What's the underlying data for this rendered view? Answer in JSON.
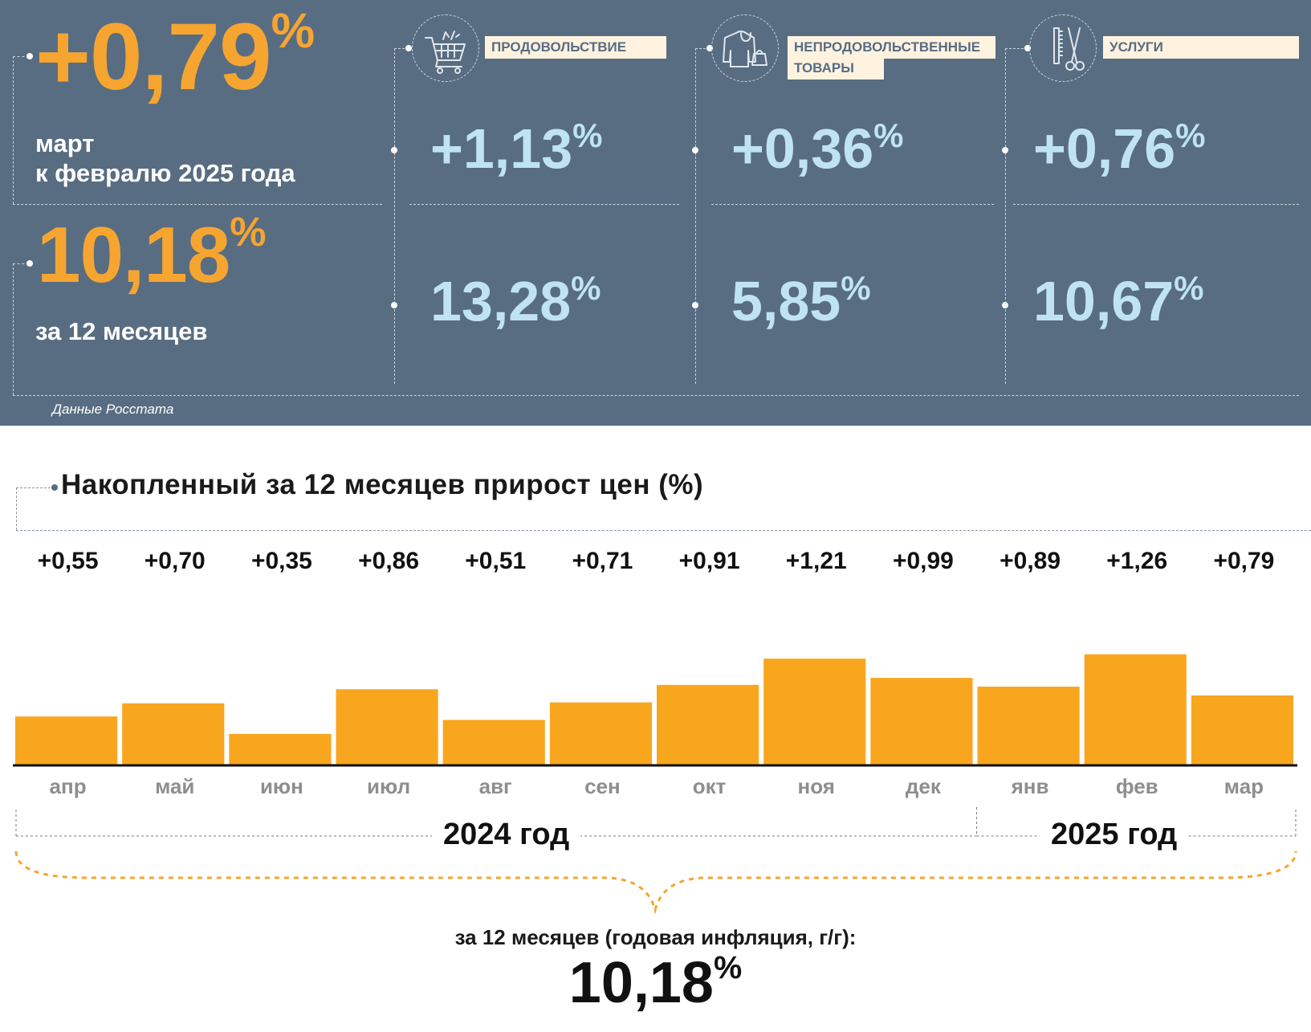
{
  "monthly": {
    "value": "+0,79",
    "unit": "%",
    "caption_line1": "март",
    "caption_line2": "к февралю 2025 года"
  },
  "annual": {
    "value": "10,18",
    "unit": "%",
    "caption": "за 12 месяцев"
  },
  "categories": [
    {
      "label": "ПРОДОВОЛЬСТВИЕ",
      "label_line2": "",
      "icon": "shopping-cart-icon",
      "monthly": "+1,13",
      "annual": "13,28"
    },
    {
      "label": "НЕПРОДОВОЛЬСТВЕННЫЕ",
      "label_line2": "ТОВАРЫ",
      "icon": "clothing-icon",
      "monthly": "+0,36",
      "annual": "5,85"
    },
    {
      "label": "УСЛУГИ",
      "label_line2": "",
      "icon": "scissors-comb-icon",
      "monthly": "+0,76",
      "annual": "10,67"
    }
  ],
  "source": "Данные Росстата",
  "colors": {
    "panel": "#586d82",
    "accent_orange": "#f6a531",
    "light_blue": "#bfe3f2",
    "bar": "#f9a61f"
  },
  "chart_data": {
    "type": "bar",
    "title": "Накопленный за 12 месяцев прирост цен (%)",
    "categories": [
      "апр",
      "май",
      "июн",
      "июл",
      "авг",
      "сен",
      "окт",
      "ноя",
      "дек",
      "янв",
      "фев",
      "мар"
    ],
    "values": [
      0.55,
      0.7,
      0.35,
      0.86,
      0.51,
      0.71,
      0.91,
      1.21,
      0.99,
      0.89,
      1.26,
      0.79
    ],
    "value_labels": [
      "+0,55",
      "+0,70",
      "+0,35",
      "+0,86",
      "+0,51",
      "+0,71",
      "+0,91",
      "+1,21",
      "+0,99",
      "+0,89",
      "+1,26",
      "+0,79"
    ],
    "groups": [
      {
        "label": "2024 год",
        "months": 9
      },
      {
        "label": "2025 год",
        "months": 3
      }
    ],
    "total_caption": "за 12 месяцев (годовая инфляция, г/г):",
    "total_value": "10,18",
    "total_unit": "%"
  }
}
